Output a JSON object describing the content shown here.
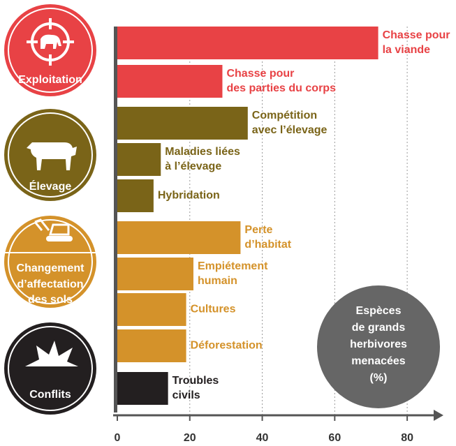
{
  "chart_data": {
    "type": "hbar",
    "categories": [
      [
        "Chasse pour",
        "la viande"
      ],
      [
        "Chasse pour",
        "des parties du corps"
      ],
      [
        "Compétition",
        "avec l’élevage"
      ],
      [
        "Maladies liées",
        "à l’élevage"
      ],
      [
        "Hybridation"
      ],
      [
        "Perte",
        "d’habitat"
      ],
      [
        "Empiétement",
        "humain"
      ],
      [
        "Cultures"
      ],
      [
        "Déforestation"
      ],
      [
        "Troubles",
        "civils"
      ]
    ],
    "values": [
      72,
      29,
      36,
      12,
      10,
      34,
      21,
      19,
      19,
      14
    ],
    "colors": [
      "#e84245",
      "#e84245",
      "#7a6418",
      "#7a6418",
      "#7a6418",
      "#d4922a",
      "#d4922a",
      "#d4922a",
      "#d4922a",
      "#231f20"
    ],
    "groups": [
      {
        "label": [
          "Exploitation"
        ],
        "color": "#e84245"
      },
      {
        "label": [
          "Élevage"
        ],
        "color": "#7a6418"
      },
      {
        "label": [
          "Changement",
          "d’affectation",
          "des sols"
        ],
        "color": "#d4922a"
      },
      {
        "label": [
          "Conflits"
        ],
        "color": "#231f20"
      }
    ],
    "annotation": [
      "Espèces",
      "de grands",
      "herbivores",
      "menacées",
      "(%)"
    ],
    "xlim": [
      0,
      90
    ],
    "xticks": [
      0,
      20,
      40,
      60,
      80
    ],
    "grid": true
  }
}
